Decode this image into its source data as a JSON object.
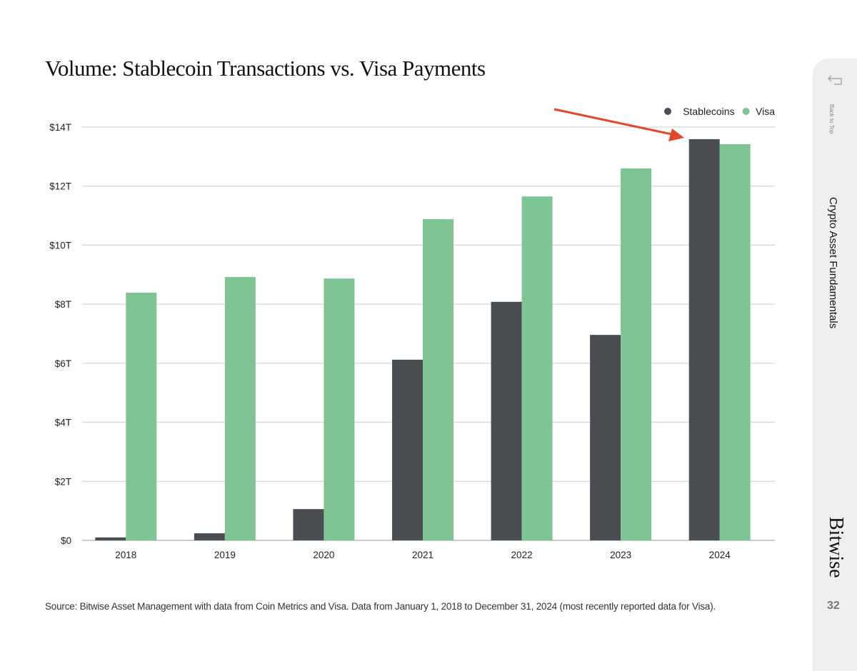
{
  "sidebar": {
    "back_label": "Back to Top",
    "section": "Crypto Asset Fundamentals",
    "brand": "Bitwise",
    "page_number": "32"
  },
  "source": "Source: Bitwise Asset Management with data from Coin Metrics and Visa. Data from January 1, 2018 to December 31, 2024 (most recently reported data for Visa).",
  "chart_data": {
    "type": "bar",
    "title": "Volume: Stablecoin Transactions vs. Visa Payments",
    "xlabel": "",
    "ylabel": "",
    "categories": [
      "2018",
      "2019",
      "2020",
      "2021",
      "2022",
      "2023",
      "2024"
    ],
    "series": [
      {
        "name": "Stablecoins",
        "color": "#4a4d52",
        "values": [
          0.1,
          0.24,
          1.06,
          6.12,
          8.08,
          6.96,
          13.59
        ]
      },
      {
        "name": "Visa",
        "color": "#7fc495",
        "values": [
          8.39,
          8.92,
          8.87,
          10.88,
          11.65,
          12.6,
          13.42
        ]
      }
    ],
    "ylim": [
      0,
      14
    ],
    "yticks": [
      0,
      2,
      4,
      6,
      8,
      10,
      12,
      14
    ],
    "ytick_labels": [
      "$0",
      "$2T",
      "$4T",
      "$6T",
      "$8T",
      "$10T",
      "$12T",
      "$14T"
    ],
    "grid": true,
    "legend": "top-right",
    "annotation": {
      "type": "arrow",
      "color": "#e0492c",
      "points_to": "2024"
    }
  }
}
